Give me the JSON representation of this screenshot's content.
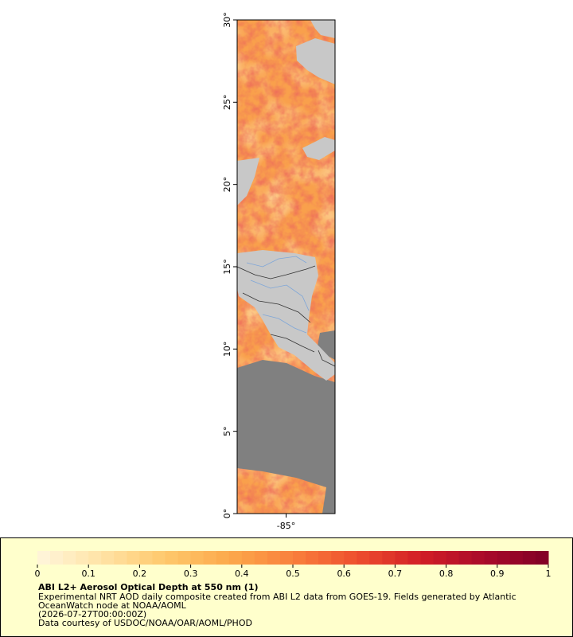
{
  "map": {
    "xlim": [
      -88,
      -82
    ],
    "ylim": [
      0,
      30
    ],
    "yticks": [
      {
        "value": 0,
        "label": "0°"
      },
      {
        "value": 5,
        "label": "5°"
      },
      {
        "value": 10,
        "label": "10°"
      },
      {
        "value": 15,
        "label": "15°"
      },
      {
        "value": 20,
        "label": "20°"
      },
      {
        "value": 25,
        "label": "25°"
      },
      {
        "value": 30,
        "label": "30°"
      }
    ],
    "xticks": [
      {
        "value": -85,
        "label": "-85°"
      }
    ]
  },
  "colorbar": {
    "lim": [
      0,
      1
    ],
    "ticks": [
      0,
      0.1,
      0.2,
      0.3,
      0.4,
      0.5,
      0.6,
      0.7,
      0.8,
      0.9,
      1
    ],
    "colors": [
      "#fff6dc",
      "#ffe3a6",
      "#fec86c",
      "#fca94c",
      "#f9803c",
      "#ee4f2e",
      "#d21e26",
      "#a90a2a",
      "#800026"
    ]
  },
  "legend": {
    "title": "ABI L2+ Aerosol Optical Depth at 550 nm (1)",
    "lines": [
      "Experimental NRT AOD daily composite created from ABI L2 data from GOES-19. Fields generated by Atlantic",
      "OceanWatch node at NOAA/AOML",
      "(2026-07-27T00:00:00Z)",
      "Data courtesy of USDOC/NOAA/OAR/AOML/PHOD"
    ]
  }
}
